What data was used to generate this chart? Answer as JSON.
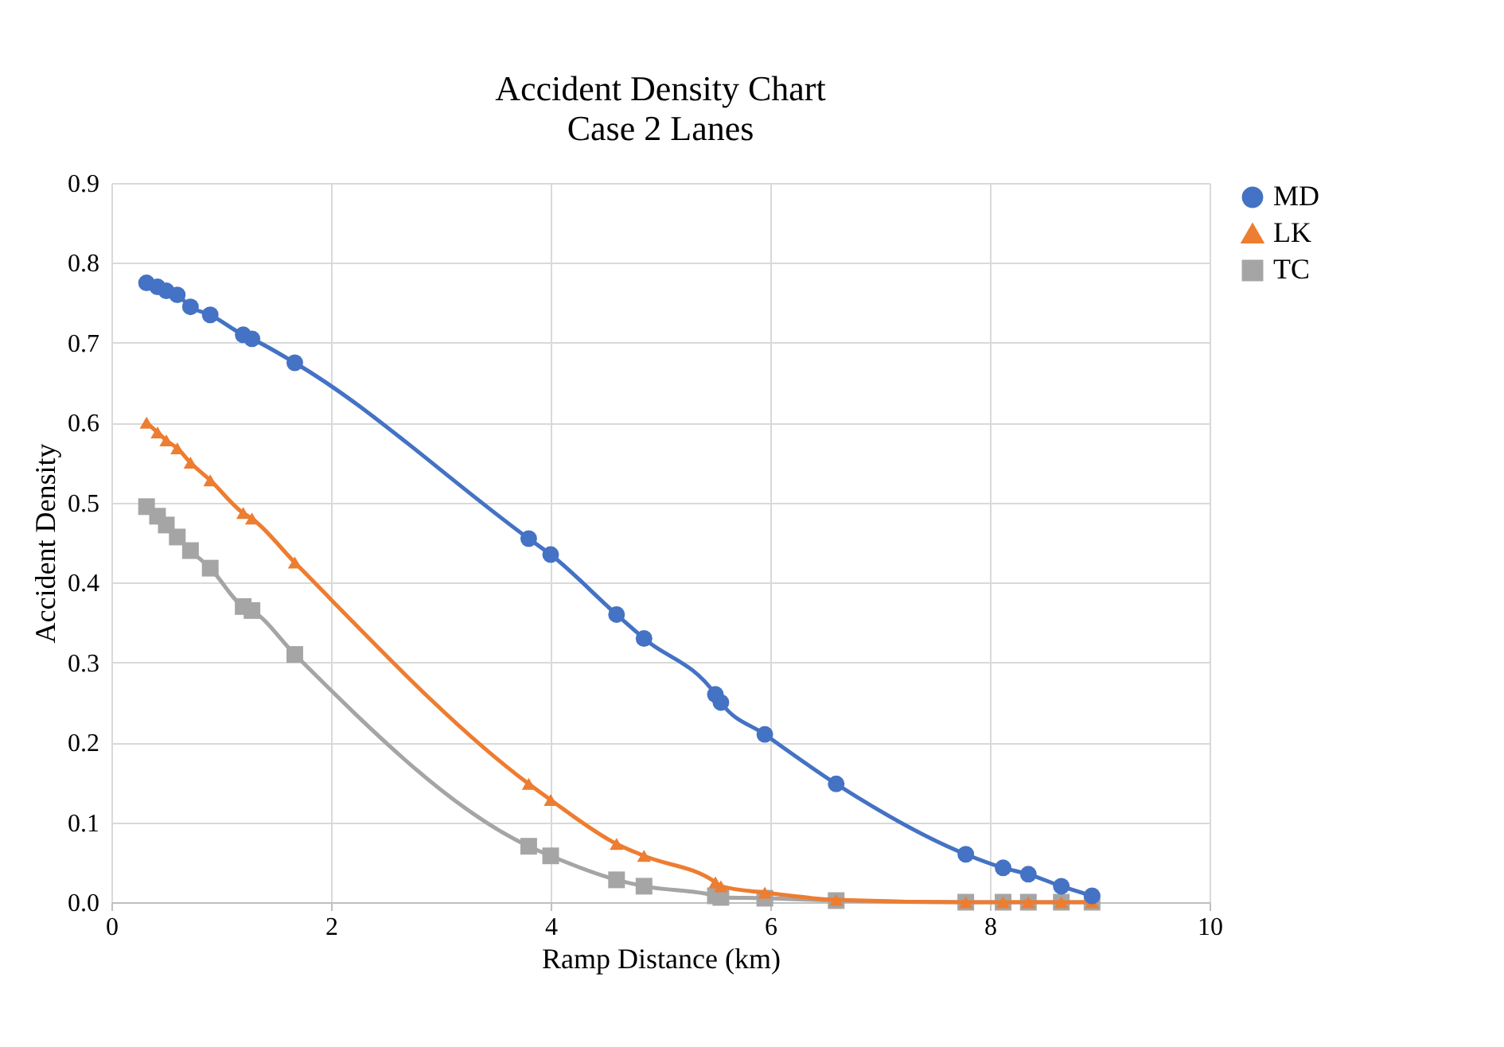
{
  "chart_data": {
    "type": "line",
    "title": "Accident Density Chart",
    "subtitle": "Case 2 Lanes",
    "xlabel": "Ramp Distance (km)",
    "ylabel": "Accident Density",
    "x": [
      0.32,
      0.42,
      0.5,
      0.6,
      0.72,
      0.9,
      1.2,
      1.28,
      1.67,
      3.8,
      4.0,
      4.6,
      4.85,
      5.5,
      5.55,
      5.95,
      6.6,
      7.78,
      8.12,
      8.35,
      8.65,
      8.93
    ],
    "series": [
      {
        "name": "MD",
        "color": "#4472c4",
        "marker": "circle",
        "values": [
          0.775,
          0.77,
          0.765,
          0.76,
          0.745,
          0.735,
          0.71,
          0.705,
          0.675,
          0.455,
          0.435,
          0.36,
          0.33,
          0.26,
          0.25,
          0.21,
          0.148,
          0.06,
          0.043,
          0.035,
          0.02,
          0.008
        ]
      },
      {
        "name": "LK",
        "color": "#ed7d31",
        "marker": "triangle",
        "values": [
          0.6,
          0.588,
          0.578,
          0.568,
          0.55,
          0.528,
          0.487,
          0.48,
          0.425,
          0.148,
          0.128,
          0.073,
          0.058,
          0.025,
          0.02,
          0.012,
          0.003,
          0,
          0,
          0,
          0,
          0
        ]
      },
      {
        "name": "TC",
        "color": "#a5a5a5",
        "marker": "square",
        "values": [
          0.495,
          0.483,
          0.472,
          0.457,
          0.44,
          0.418,
          0.37,
          0.365,
          0.31,
          0.07,
          0.058,
          0.028,
          0.02,
          0.008,
          0.006,
          0.005,
          0.002,
          0,
          0,
          0,
          0,
          0
        ]
      }
    ],
    "xlim": [
      0,
      10
    ],
    "xticks": [
      0,
      2,
      4,
      6,
      8,
      10
    ],
    "ylim": [
      0,
      0.9
    ],
    "yticks": [
      {
        "value": 0,
        "label": "0.0"
      },
      {
        "value": 0.1,
        "label": "0.1"
      },
      {
        "value": 0.2,
        "label": "0.2"
      },
      {
        "value": 0.3,
        "label": "0.3"
      },
      {
        "value": 0.4,
        "label": "0.4"
      },
      {
        "value": 0.5,
        "label": "0.5"
      },
      {
        "value": 0.6,
        "label": "0.6"
      },
      {
        "value": 0.7,
        "label": "0.7"
      },
      {
        "value": 0.8,
        "label": "0.8"
      },
      {
        "value": 0.9,
        "label": "0.9"
      }
    ],
    "grid": true,
    "legend": "right"
  }
}
